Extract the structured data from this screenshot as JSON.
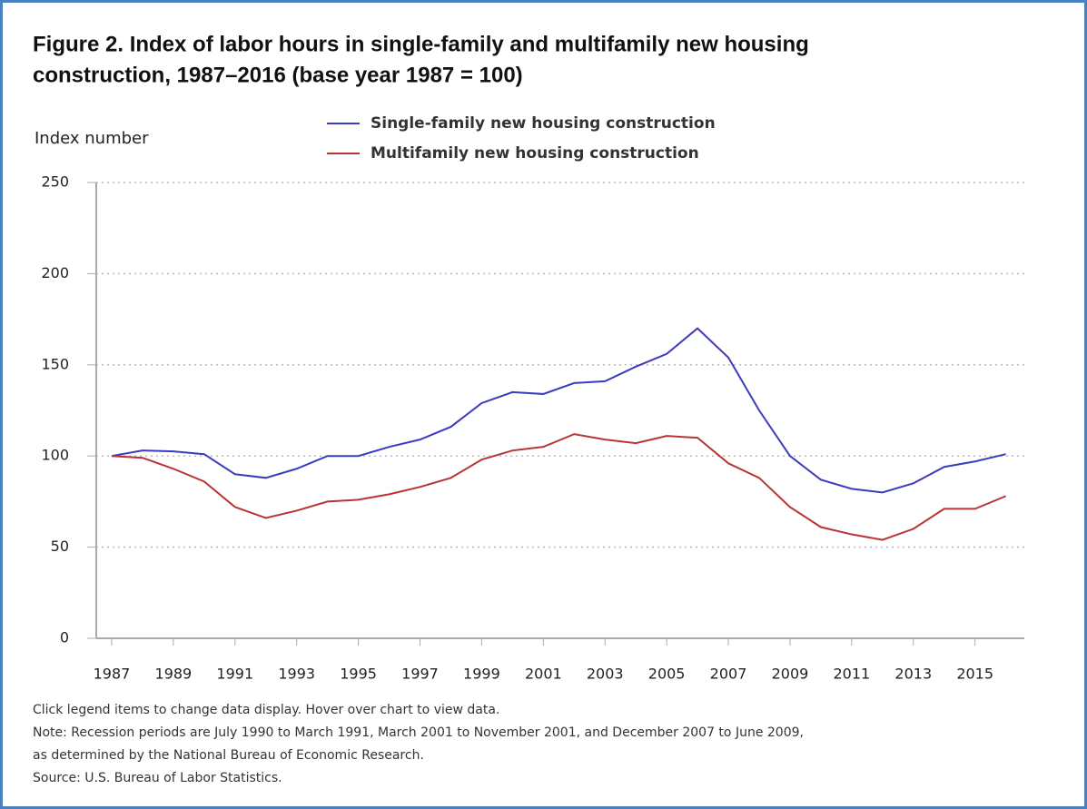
{
  "chart_data": {
    "type": "line",
    "title": [
      "Figure 2. Index of labor hours in single-family and multifamily new housing",
      "construction, 1987–2016 (base year 1987 = 100)"
    ],
    "y_label": "Index number",
    "x": [
      1987,
      1988,
      1989,
      1990,
      1991,
      1992,
      1993,
      1994,
      1995,
      1996,
      1997,
      1998,
      1999,
      2000,
      2001,
      2002,
      2003,
      2004,
      2005,
      2006,
      2007,
      2008,
      2009,
      2010,
      2011,
      2012,
      2013,
      2014,
      2015,
      2016
    ],
    "series": [
      {
        "name": "Single-family new housing construction",
        "color": "#3b3bbf",
        "values": [
          100,
          103,
          102.5,
          101,
          90,
          88,
          93,
          100,
          100,
          105,
          109,
          116,
          129,
          135,
          134,
          140,
          141,
          149,
          156,
          170,
          154,
          125,
          100,
          87,
          82,
          80,
          85,
          94,
          97,
          101
        ]
      },
      {
        "name": "Multifamily new housing construction",
        "color": "#b83434",
        "values": [
          100,
          99,
          93,
          86,
          72,
          66,
          70,
          75,
          76,
          79,
          83,
          88,
          98,
          103,
          105,
          112,
          109,
          107,
          111,
          110,
          96,
          88,
          72,
          61,
          57,
          54,
          60,
          71,
          71,
          78
        ]
      }
    ],
    "xlim": [
      1986.5,
      2016.6
    ],
    "xticks": [
      1987,
      1989,
      1991,
      1993,
      1995,
      1997,
      1999,
      2001,
      2003,
      2005,
      2007,
      2009,
      2011,
      2013,
      2015
    ],
    "ylim": [
      0,
      250
    ],
    "yticks": [
      0,
      50,
      100,
      150,
      200,
      250
    ],
    "grid": true,
    "notes": [
      "Click legend items to change data display. Hover over chart to view data.",
      "Note: Recession periods are July 1990 to March 1991, March 2001 to November 2001, and December 2007 to June 2009,",
      "as determined by the National Bureau of Economic Research.",
      "Source: U.S. Bureau of Labor Statistics."
    ]
  }
}
